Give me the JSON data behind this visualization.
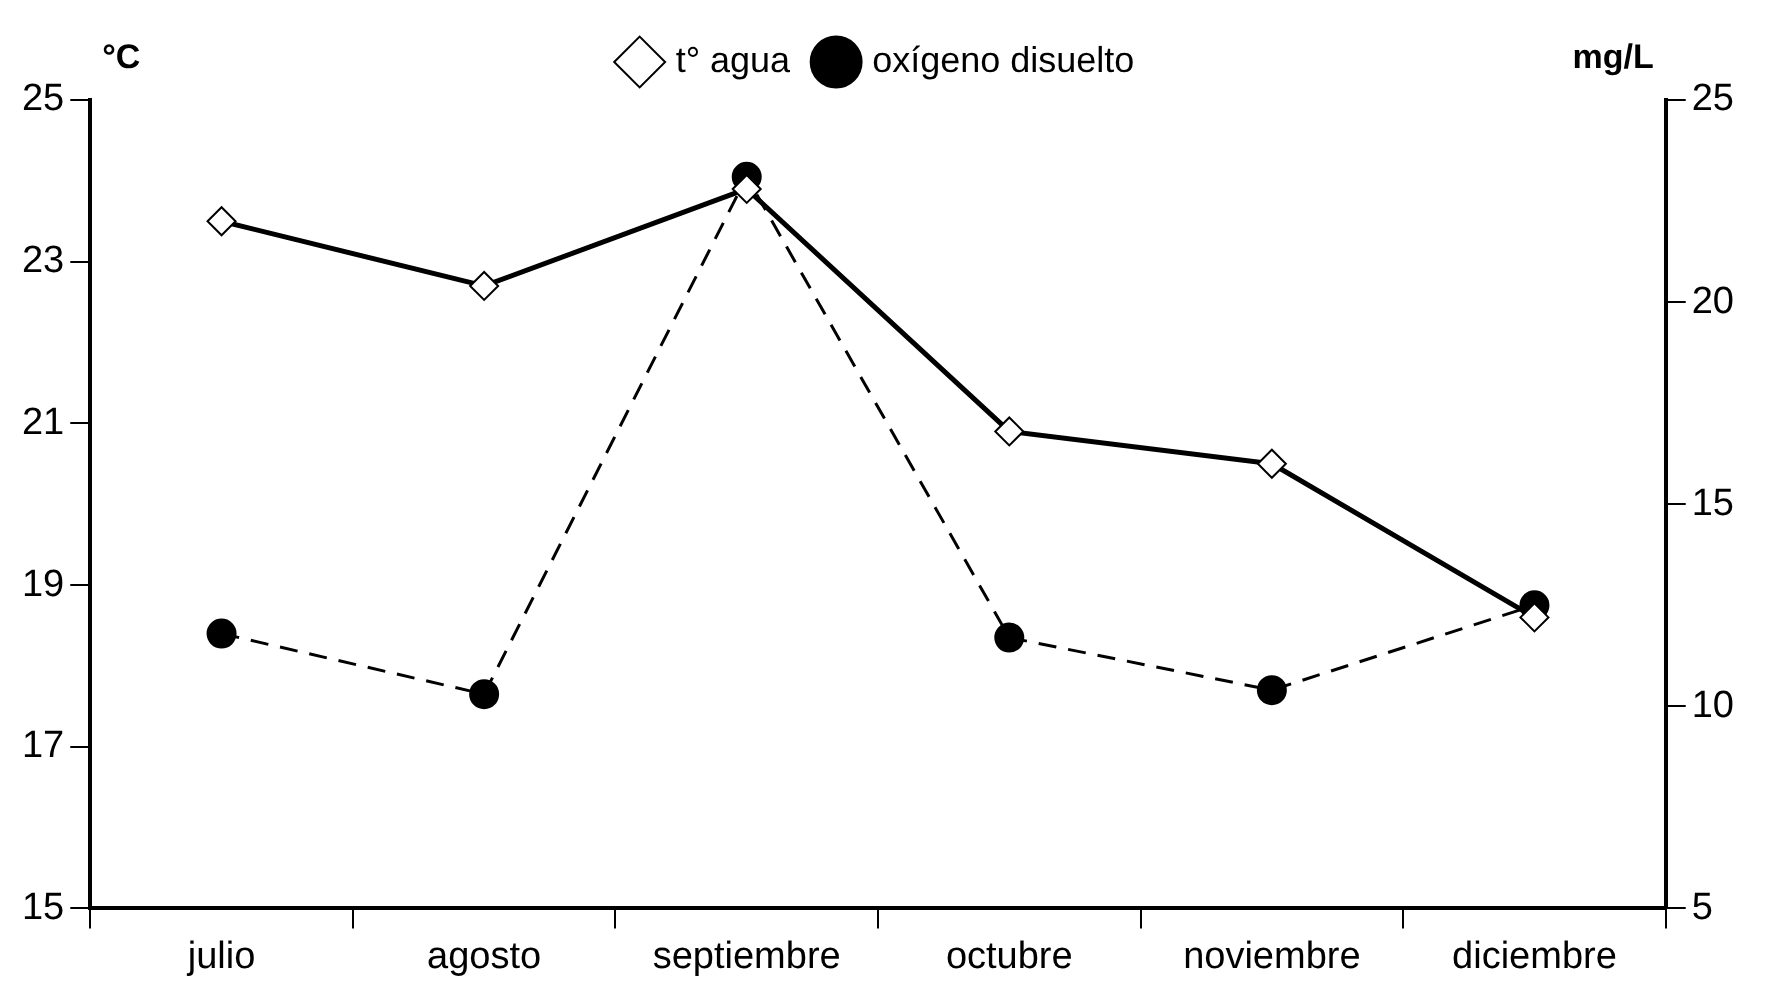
{
  "chart_data": {
    "type": "line",
    "categories": [
      "julio",
      "agosto",
      "septiembre",
      "octubre",
      "noviembre",
      "diciembre"
    ],
    "ylabel": "°C",
    "y2label": "mg/L",
    "series": [
      {
        "name": "t° agua",
        "color": "#000000",
        "values": [
          23.5,
          22.7,
          23.9,
          20.9,
          20.5,
          18.6
        ],
        "marker": "diamond",
        "line_style": "solid"
      },
      {
        "name": "oxígeno disuelto",
        "color": "#000000",
        "values": [
          11.8,
          10.3,
          23.1,
          11.7,
          10.4,
          12.5
        ],
        "marker": "circle",
        "line_style": "dashed",
        "axis": "y2"
      }
    ],
    "ylim": [
      15,
      25
    ],
    "yticks": [
      15,
      17,
      19,
      21,
      23,
      25
    ],
    "y2lim": [
      5,
      25
    ],
    "y2ticks": [
      5,
      10,
      15,
      20,
      25
    ],
    "grid": false,
    "legend": "top"
  }
}
